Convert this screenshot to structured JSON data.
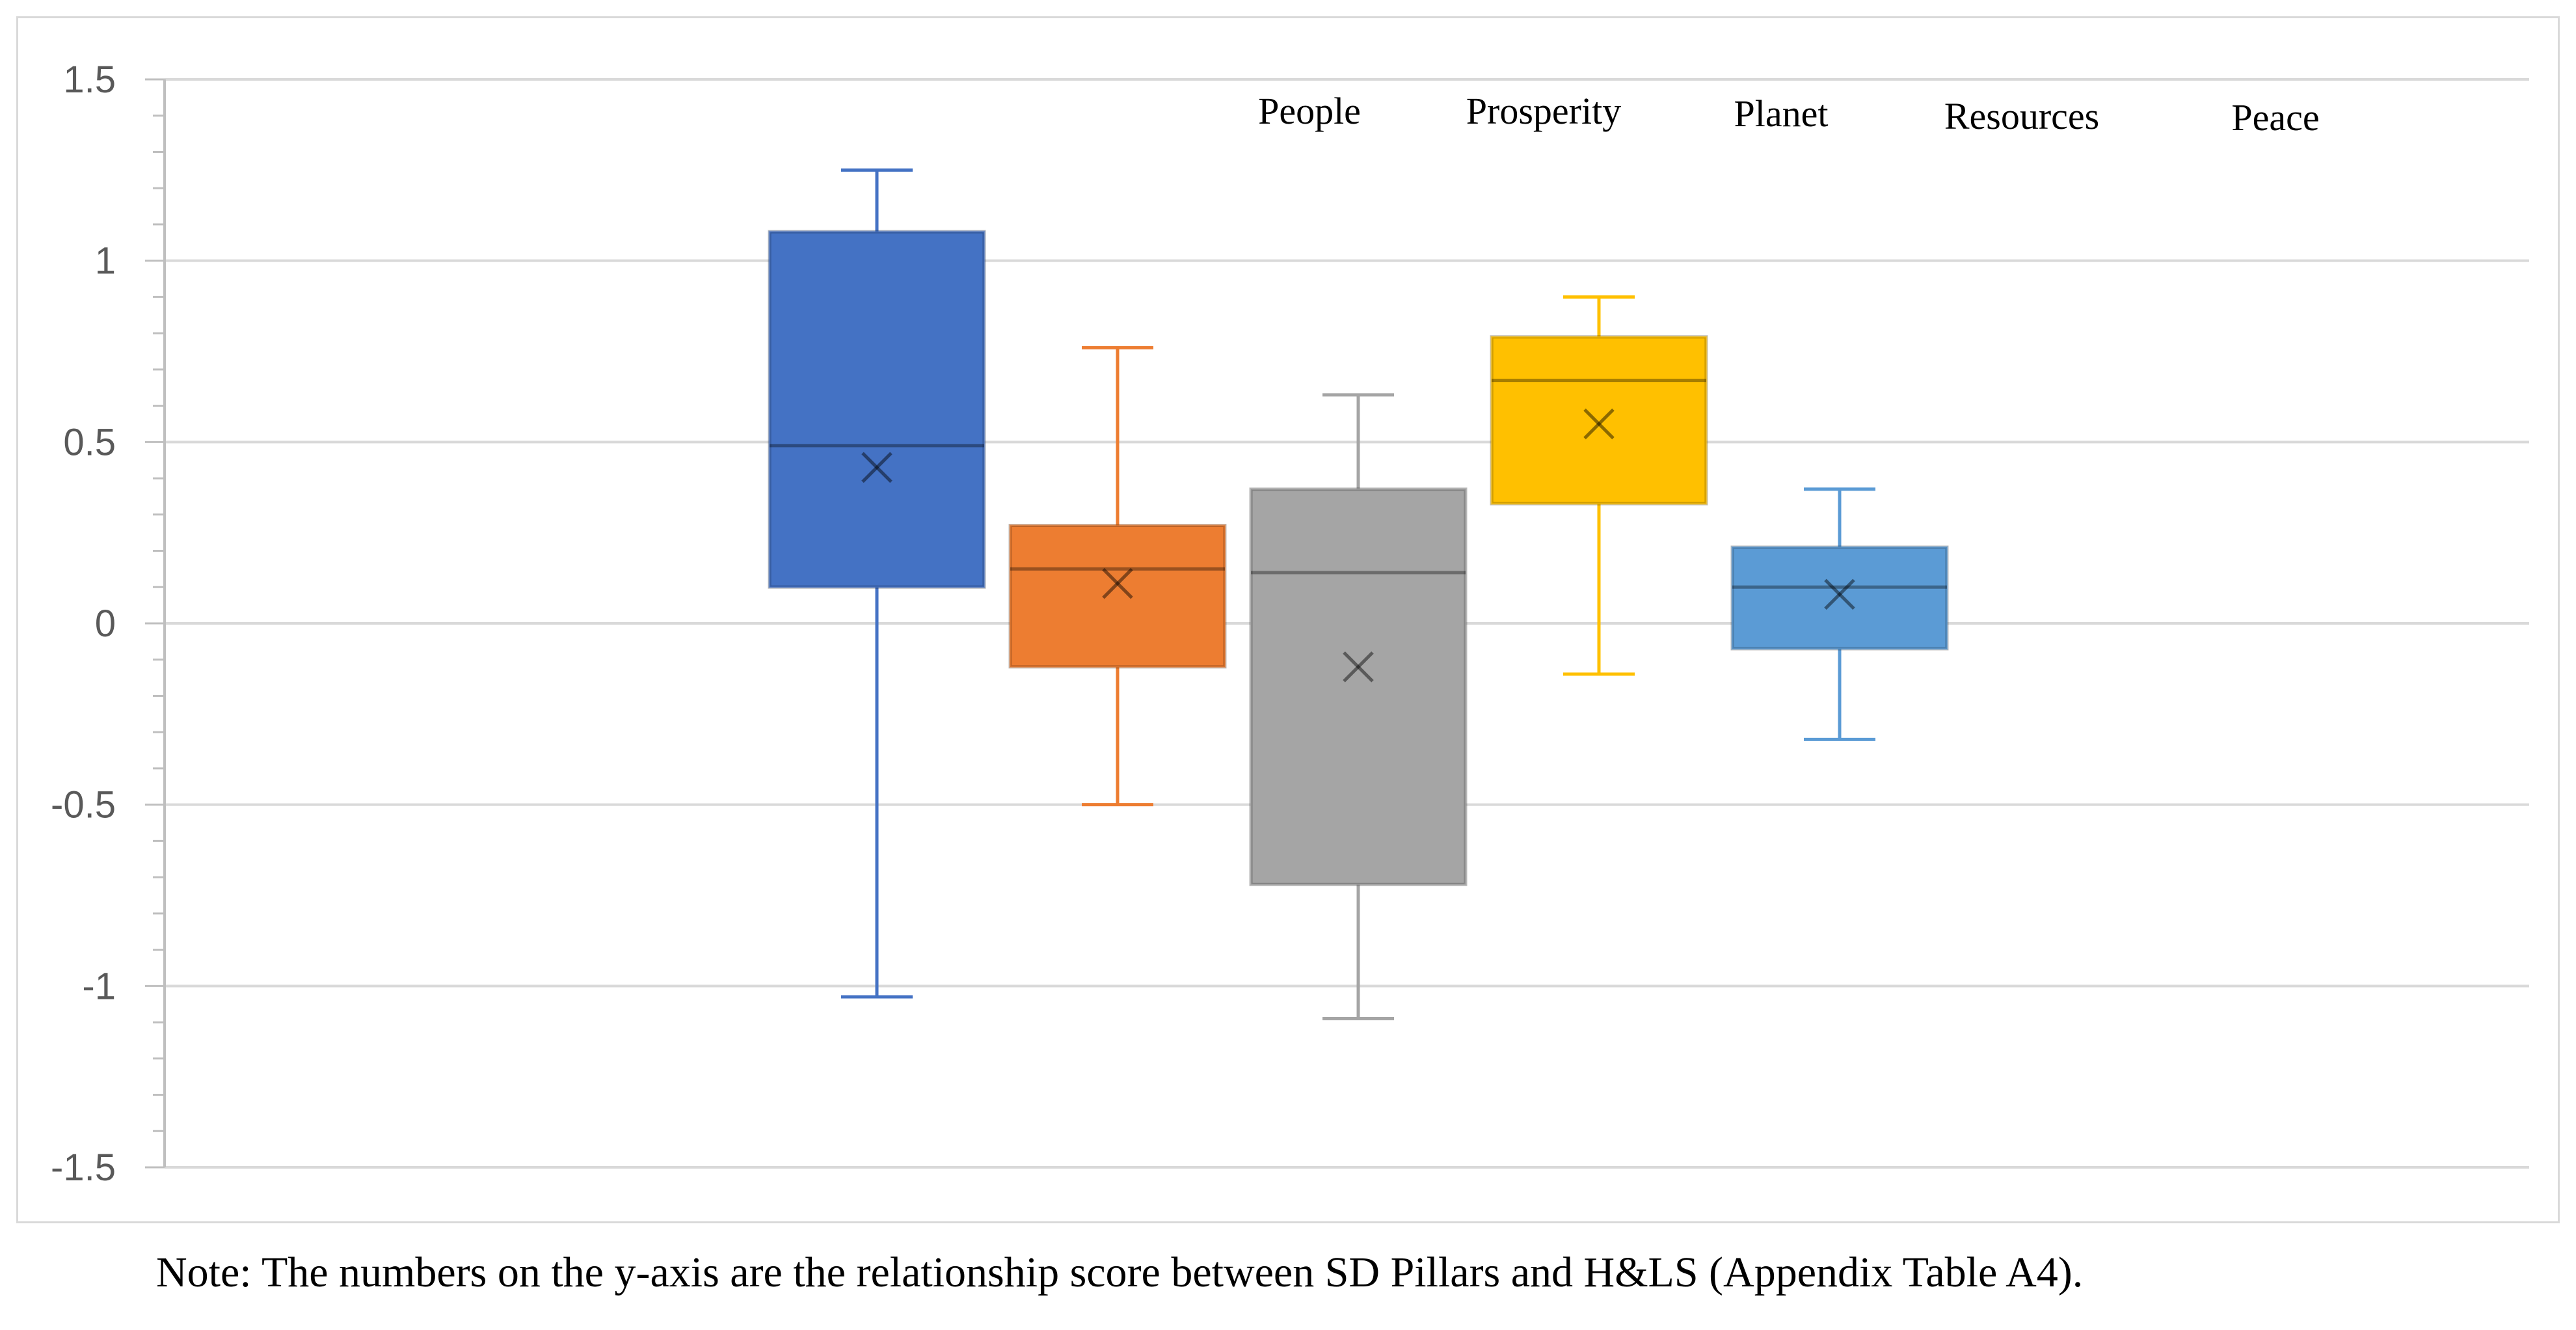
{
  "chart_data": {
    "type": "box",
    "title": "",
    "xlabel": "",
    "ylabel": "",
    "ylim": [
      -1.5,
      1.5
    ],
    "yticks": [
      1.5,
      1,
      0.5,
      0,
      -0.5,
      -1,
      -1.5
    ],
    "ytick_labels": [
      "1.5",
      "1",
      "0.5",
      "0",
      "-0.5",
      "-1",
      "-1.5"
    ],
    "grid": true,
    "legend_position": "top-right",
    "legend": [
      "People",
      "Prosperity",
      "Planet",
      "Resources",
      "Peace"
    ],
    "series": [
      {
        "name": "People",
        "color": "#4472c4",
        "whisker_low": -1.03,
        "q1": 0.1,
        "median": 0.49,
        "q3": 1.08,
        "whisker_high": 1.25,
        "mean": 0.43
      },
      {
        "name": "Prosperity",
        "color": "#ed7d31",
        "whisker_low": -0.5,
        "q1": -0.12,
        "median": 0.15,
        "q3": 0.27,
        "whisker_high": 0.76,
        "mean": 0.11
      },
      {
        "name": "Planet",
        "color": "#a5a5a5",
        "whisker_low": -1.09,
        "q1": -0.72,
        "median": 0.14,
        "q3": 0.37,
        "whisker_high": 0.63,
        "mean": -0.12
      },
      {
        "name": "Resources",
        "color": "#ffc000",
        "whisker_low": -0.14,
        "q1": 0.33,
        "median": 0.67,
        "q3": 0.79,
        "whisker_high": 0.9,
        "mean": 0.55
      },
      {
        "name": "Peace",
        "color": "#5b9bd5",
        "whisker_low": -0.32,
        "q1": -0.07,
        "median": 0.1,
        "q3": 0.21,
        "whisker_high": 0.37,
        "mean": 0.08
      }
    ]
  },
  "note": "Note: The numbers on the y-axis are the relationship score between SD Pillars and H&LS (Appendix Table A4)."
}
